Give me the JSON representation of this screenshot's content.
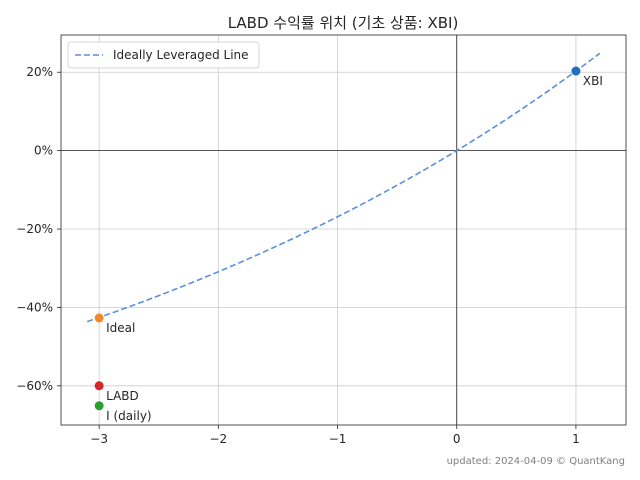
{
  "chart_data": {
    "type": "scatter",
    "title": "LABD 수익률 위치 (기초 상품: XBI)",
    "xlabel": "",
    "ylabel": "",
    "xlim": [
      -3.32,
      1.42
    ],
    "ylim": [
      -70,
      29.5
    ],
    "x_ticks": [
      -3,
      -2,
      -1,
      0,
      1
    ],
    "x_tick_labels": [
      "−3",
      "−2",
      "−1",
      "0",
      "1"
    ],
    "y_ticks": [
      20,
      0,
      -20,
      -40,
      -60
    ],
    "y_tick_labels": [
      "20%",
      "0%",
      "−20%",
      "−40%",
      "−60%"
    ],
    "grid": true,
    "zero_lines": true,
    "legend_position": "top-left",
    "curve": {
      "name": "Ideally Leveraged Line",
      "style": "dashed",
      "color": "#5b8fdf",
      "leverage": -3,
      "x_range": [
        -3.1,
        1.2
      ],
      "underlying_return_at_x1": 20.3
    },
    "points": [
      {
        "label": "XBI",
        "x": 1,
        "y": 20.3,
        "color": "#1f6fbf"
      },
      {
        "label": "Ideal",
        "x": -3,
        "y": -42.7,
        "color": "#ee8a2a"
      },
      {
        "label": "LABD",
        "x": -3,
        "y": -60.0,
        "color": "#d62728"
      },
      {
        "label": "I (daily)",
        "x": -3,
        "y": -65.1,
        "color": "#2ca02c"
      }
    ]
  },
  "footer": "updated: 2024-04-09 © QuantKang"
}
